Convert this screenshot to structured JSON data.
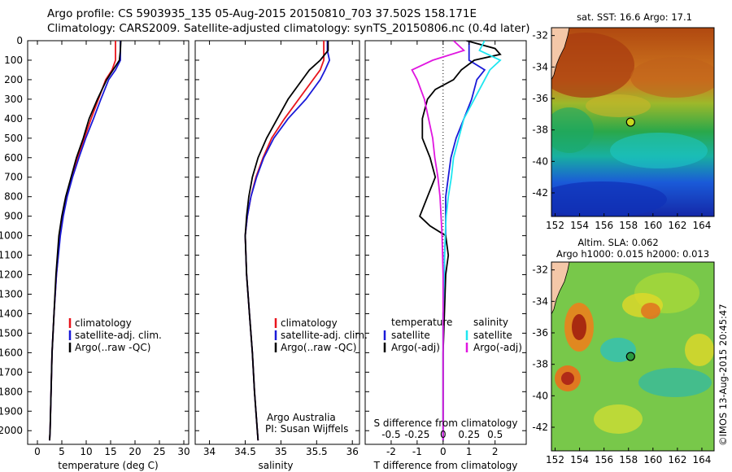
{
  "header": {
    "line1": "Argo profile: CS 5903935_135 05-Aug-2015 20150810_703 37.502S 158.171E",
    "line2": "Climatology: CARS2009. Satellite-adjusted climatology: synTS_20150806.nc (0.4d later)"
  },
  "colors": {
    "climatology": "#e8141c",
    "satellite": "#1a1ad8",
    "argo": "#000000",
    "sat_sal": "#1ee6f0",
    "argo_sal": "#e016e0"
  },
  "chart_data": [
    {
      "type": "line",
      "id": "temperature",
      "xlabel": "temperature (deg C)",
      "ylabel": "",
      "xlim": [
        -2,
        31
      ],
      "ylim": [
        2070,
        0
      ],
      "xticks": [
        0,
        5,
        10,
        15,
        20,
        25,
        30
      ],
      "yticks": [
        0,
        100,
        200,
        300,
        400,
        500,
        600,
        700,
        800,
        900,
        1000,
        1100,
        1200,
        1300,
        1400,
        1500,
        1600,
        1700,
        1800,
        1900,
        2000
      ],
      "legend": {
        "placement": "center-left",
        "entries": [
          "climatology",
          "satellite-adj. clim.",
          "Argo(..raw -QC)"
        ]
      },
      "series": [
        {
          "name": "climatology",
          "color": "#e8141c",
          "depth": [
            0,
            50,
            100,
            150,
            200,
            300,
            400,
            500,
            600,
            700,
            800,
            900,
            1000,
            1200,
            1400,
            1600,
            1800,
            2000,
            2050
          ],
          "values": [
            16.0,
            16.0,
            16.0,
            15.3,
            14.0,
            12.5,
            11.0,
            9.6,
            8.2,
            7.0,
            6.0,
            5.2,
            4.6,
            3.9,
            3.4,
            3.0,
            2.8,
            2.6,
            2.5
          ]
        },
        {
          "name": "satellite-adj. clim.",
          "color": "#1a1ad8",
          "depth": [
            0,
            50,
            100,
            150,
            200,
            300,
            400,
            500,
            600,
            700,
            800,
            900,
            1000,
            1200,
            1400,
            1600,
            1800,
            2000,
            2050
          ],
          "values": [
            17.0,
            17.0,
            17.0,
            16.0,
            14.6,
            13.0,
            11.5,
            9.9,
            8.5,
            7.2,
            6.1,
            5.3,
            4.7,
            3.9,
            3.4,
            3.0,
            2.8,
            2.6,
            2.5
          ]
        },
        {
          "name": "Argo(..raw -QC)",
          "color": "#000000",
          "depth": [
            0,
            50,
            100,
            150,
            200,
            300,
            400,
            500,
            600,
            700,
            800,
            900,
            1000,
            1200,
            1400,
            1600,
            1800,
            2000,
            2050
          ],
          "values": [
            17.1,
            17.0,
            16.8,
            15.5,
            14.2,
            12.3,
            10.6,
            9.4,
            8.0,
            6.9,
            5.8,
            5.0,
            4.4,
            3.8,
            3.4,
            3.0,
            2.8,
            2.6,
            2.5
          ]
        }
      ]
    },
    {
      "type": "line",
      "id": "salinity",
      "xlabel": "salinity",
      "ylabel": "",
      "xlim": [
        33.8,
        36.1
      ],
      "ylim": [
        2070,
        0
      ],
      "xticks": [
        34,
        34.5,
        35,
        35.5,
        36
      ],
      "legend": {
        "placement": "center-left",
        "entries": [
          "climatology",
          "satellite-adj. clim.",
          "Argo(..raw -QC)"
        ]
      },
      "annotations": [
        "Argo Australia",
        "PI: Susan Wijffels"
      ],
      "series": [
        {
          "name": "climatology",
          "color": "#e8141c",
          "depth": [
            0,
            50,
            100,
            150,
            200,
            300,
            400,
            500,
            600,
            700,
            800,
            900,
            1000,
            1200,
            1400,
            1600,
            1800,
            2000,
            2050
          ],
          "values": [
            35.6,
            35.6,
            35.6,
            35.55,
            35.45,
            35.25,
            35.05,
            34.87,
            34.75,
            34.65,
            34.58,
            34.53,
            34.5,
            34.52,
            34.56,
            34.6,
            34.63,
            34.67,
            34.68
          ]
        },
        {
          "name": "satellite-adj. clim.",
          "color": "#1a1ad8",
          "depth": [
            0,
            50,
            100,
            150,
            200,
            300,
            400,
            500,
            600,
            700,
            800,
            900,
            1000,
            1200,
            1400,
            1600,
            1800,
            2000,
            2050
          ],
          "values": [
            35.65,
            35.65,
            35.68,
            35.62,
            35.55,
            35.35,
            35.1,
            34.9,
            34.76,
            34.66,
            34.58,
            34.53,
            34.5,
            34.52,
            34.56,
            34.6,
            34.63,
            34.67,
            34.68
          ]
        },
        {
          "name": "Argo(..raw -QC)",
          "color": "#000000",
          "depth": [
            0,
            50,
            100,
            150,
            200,
            300,
            400,
            500,
            600,
            700,
            800,
            900,
            1000,
            1200,
            1400,
            1600,
            1800,
            2000,
            2050
          ],
          "values": [
            35.66,
            35.66,
            35.55,
            35.4,
            35.3,
            35.1,
            34.95,
            34.8,
            34.68,
            34.6,
            34.55,
            34.52,
            34.5,
            34.52,
            34.56,
            34.6,
            34.63,
            34.67,
            34.68
          ]
        }
      ]
    },
    {
      "type": "line",
      "id": "differences",
      "xlabel": "T difference from climatology",
      "xlabel_top": "S difference from climatology",
      "xlim": [
        -3,
        3.2
      ],
      "ylim": [
        2070,
        0
      ],
      "xticks": [
        -2,
        -1,
        0,
        1,
        2
      ],
      "xticks_s": [
        -0.5,
        -0.25,
        0,
        0.25,
        0.5
      ],
      "legend": {
        "placement": "center",
        "temperature_title": "temperature",
        "salinity_title": "salinity",
        "entries": [
          "satellite",
          "Argo(-adj)",
          "satellite",
          "Argo(-adj)"
        ]
      },
      "series": [
        {
          "name": "T satellite",
          "color": "#1a1ad8",
          "depth": [
            0,
            50,
            100,
            150,
            200,
            300,
            400,
            500,
            600,
            700,
            800,
            900,
            1000,
            1100,
            1200,
            1400,
            1600,
            1800,
            2000,
            2050
          ],
          "values": [
            1.0,
            1.0,
            1.0,
            1.6,
            1.3,
            1.1,
            0.8,
            0.5,
            0.3,
            0.2,
            0.1,
            0.1,
            0.1,
            0.05,
            0.05,
            0,
            0,
            0,
            0,
            0
          ]
        },
        {
          "name": "T Argo(-adj)",
          "color": "#000000",
          "depth": [
            0,
            40,
            70,
            100,
            150,
            200,
            250,
            300,
            400,
            500,
            600,
            700,
            800,
            900,
            950,
            1000,
            1100,
            1200,
            1400,
            1600,
            1800,
            2000,
            2050
          ],
          "values": [
            0.9,
            2.0,
            2.2,
            1.2,
            0.7,
            0.4,
            -0.3,
            -0.6,
            -0.8,
            -0.8,
            -0.5,
            -0.3,
            -0.6,
            -0.9,
            -0.5,
            0.1,
            0.2,
            0.1,
            0.05,
            0,
            0,
            0,
            0
          ]
        },
        {
          "name": "S satellite",
          "color": "#1ee6f0",
          "depth": [
            0,
            50,
            100,
            150,
            200,
            300,
            400,
            500,
            600,
            700,
            800,
            900,
            1000,
            1200,
            1400,
            1600,
            1800,
            2000,
            2050
          ],
          "values": [
            0.4,
            0.35,
            0.55,
            0.45,
            0.4,
            0.3,
            0.2,
            0.15,
            0.1,
            0.08,
            0.05,
            0.03,
            0.02,
            0.01,
            0,
            0,
            0,
            0,
            0
          ]
        },
        {
          "name": "S Argo(-adj)",
          "color": "#e016e0",
          "depth": [
            0,
            50,
            100,
            150,
            200,
            300,
            400,
            500,
            600,
            700,
            800,
            900,
            1000,
            1200,
            1400,
            1600,
            1800,
            2000,
            2050
          ],
          "values": [
            0.1,
            0.2,
            -0.1,
            -0.3,
            -0.25,
            -0.18,
            -0.14,
            -0.1,
            -0.08,
            -0.05,
            -0.03,
            -0.02,
            -0.01,
            0,
            0,
            0,
            0,
            0,
            0
          ]
        }
      ]
    },
    {
      "type": "heatmap",
      "id": "sst_map",
      "title": "sat. SST: 16.6  Argo: 17.1",
      "xlim": [
        151.7,
        165.0
      ],
      "ylim": [
        -43.5,
        -31.5
      ],
      "xticks": [
        152,
        154,
        156,
        158,
        160,
        162,
        164
      ],
      "yticks": [
        -32,
        -34,
        -36,
        -38,
        -40,
        -42
      ],
      "marker": {
        "lon": 158.171,
        "lat": -37.502
      }
    },
    {
      "type": "heatmap",
      "id": "sla_map",
      "title": "Altim. SLA: 0.062",
      "subtitle": "Argo h1000: 0.015 h2000: 0.013",
      "xlim": [
        151.7,
        165.0
      ],
      "ylim": [
        -43.5,
        -31.5
      ],
      "xticks": [
        152,
        154,
        156,
        158,
        160,
        162,
        164
      ],
      "yticks": [
        -32,
        -34,
        -36,
        -38,
        -40,
        -42
      ],
      "marker": {
        "lon": 158.171,
        "lat": -37.502
      }
    }
  ],
  "footer": {
    "credit": "©IMOS 13-Aug-2015 20:45:47"
  }
}
